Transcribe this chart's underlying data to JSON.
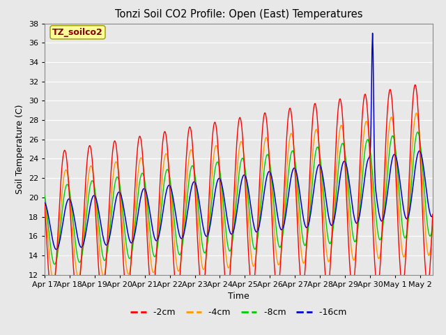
{
  "title": "Tonzi Soil CO2 Profile: Open (East) Temperatures",
  "xlabel": "Time",
  "ylabel": "Soil Temperature (C)",
  "ylim": [
    12,
    38
  ],
  "background_color": "#e8e8e8",
  "annotation_text": "TZ_soilco2",
  "annotation_color": "#8B0000",
  "annotation_bg": "#ffff99",
  "series_colors": {
    "-2cm": "#ff0000",
    "-4cm": "#ff9900",
    "-8cm": "#00cc00",
    "-16cm": "#0000cc"
  },
  "tick_labels": [
    "Apr 17",
    "Apr 18",
    "Apr 19",
    "Apr 20",
    "Apr 21",
    "Apr 22",
    "Apr 23",
    "Apr 24",
    "Apr 25",
    "Apr 26",
    "Apr 27",
    "Apr 28",
    "Apr 29",
    "Apr 30",
    "May 1",
    "May 2"
  ],
  "yticks": [
    12,
    14,
    16,
    18,
    20,
    22,
    24,
    26,
    28,
    30,
    32,
    34,
    36,
    38
  ]
}
